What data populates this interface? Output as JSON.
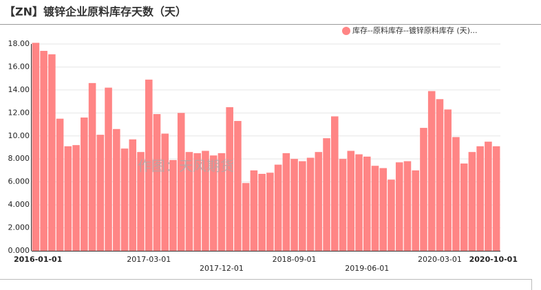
{
  "chart_data": {
    "type": "bar",
    "title": "【ZN】镀锌企业原料库存天数（天）",
    "watermark": "作图：天风期货",
    "categories": [
      "2016-01-01",
      null,
      null,
      null,
      null,
      null,
      null,
      null,
      null,
      null,
      null,
      null,
      null,
      null,
      "2017-03-01",
      null,
      null,
      null,
      null,
      null,
      null,
      null,
      null,
      "2017-12-01",
      null,
      null,
      null,
      null,
      null,
      null,
      null,
      null,
      "2018-09-01",
      null,
      null,
      null,
      null,
      null,
      null,
      null,
      null,
      "2019-06-01",
      null,
      null,
      null,
      null,
      null,
      null,
      null,
      null,
      "2020-03-01",
      null,
      null,
      null,
      null,
      null,
      null,
      "2020-10-01"
    ],
    "series": [
      {
        "name": "库存--原料库存--镀锌原料库存 (天)...",
        "color": "#ff8585",
        "values": [
          18.1,
          17.4,
          17.1,
          11.5,
          9.1,
          9.2,
          11.6,
          14.6,
          10.1,
          14.2,
          10.6,
          8.9,
          9.7,
          8.6,
          14.9,
          11.9,
          10.2,
          7.9,
          12.0,
          8.6,
          8.5,
          8.7,
          8.3,
          8.5,
          12.5,
          11.3,
          5.9,
          7.0,
          6.7,
          6.8,
          7.5,
          8.5,
          8.0,
          7.8,
          8.1,
          8.6,
          9.8,
          11.7,
          8.0,
          8.7,
          8.4,
          8.2,
          7.4,
          7.2,
          6.2,
          7.7,
          7.8,
          7.0,
          10.7,
          13.9,
          13.2,
          12.3,
          9.9,
          7.6,
          8.6,
          9.1,
          9.5,
          9.1
        ]
      }
    ],
    "ylim": [
      0,
      18
    ],
    "yticks": [
      {
        "value": 0,
        "label": "0.000"
      },
      {
        "value": 2,
        "label": "2.000"
      },
      {
        "value": 4,
        "label": "4.000"
      },
      {
        "value": 6,
        "label": "6.000"
      },
      {
        "value": 8,
        "label": "8.000"
      },
      {
        "value": 10,
        "label": "10.00"
      },
      {
        "value": 12,
        "label": "12.00"
      },
      {
        "value": 14,
        "label": "14.00"
      },
      {
        "value": 16,
        "label": "16.00"
      },
      {
        "value": 18,
        "label": "18.00"
      }
    ],
    "grid": true
  }
}
